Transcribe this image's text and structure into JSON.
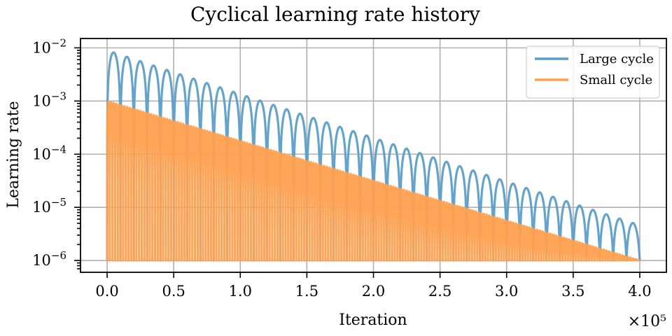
{
  "chart_data": {
    "type": "line",
    "title": "Cyclical learning rate history",
    "xlabel": "Iteration",
    "ylabel": "Learning rate",
    "x_multiplier_label": "×10⁵",
    "xlim": [
      -0.2,
      4.2
    ],
    "ylim": [
      6e-07,
      0.015
    ],
    "yscale": "log",
    "x_ticks": [
      {
        "value": 0.0,
        "label": "0.0"
      },
      {
        "value": 0.5,
        "label": "0.5"
      },
      {
        "value": 1.0,
        "label": "1.0"
      },
      {
        "value": 1.5,
        "label": "1.5"
      },
      {
        "value": 2.0,
        "label": "2.0"
      },
      {
        "value": 2.5,
        "label": "2.5"
      },
      {
        "value": 3.0,
        "label": "3.0"
      },
      {
        "value": 3.5,
        "label": "3.5"
      },
      {
        "value": 4.0,
        "label": "4.0"
      }
    ],
    "y_ticks": [
      {
        "value": 1e-06,
        "base": "10",
        "exp": "−6"
      },
      {
        "value": 1e-05,
        "base": "10",
        "exp": "−5"
      },
      {
        "value": 0.0001,
        "base": "10",
        "exp": "−4"
      },
      {
        "value": 0.001,
        "base": "10",
        "exp": "−3"
      },
      {
        "value": 0.01,
        "base": "10",
        "exp": "−2"
      }
    ],
    "grid": true,
    "legend_position": "top-right",
    "series": [
      {
        "name": "Large cycle",
        "color": "#5b9ec9",
        "base_lr": 1e-06,
        "max_lr_start": 0.009,
        "max_lr_end": 4.6e-06,
        "cycle_length": 0.1,
        "x_range": [
          0,
          4.0
        ]
      },
      {
        "name": "Small cycle",
        "color": "#ffa04f",
        "base_lr": 1e-06,
        "max_lr_start": 0.001,
        "max_lr_end": 1e-06,
        "cycle_length": 0.02,
        "x_range": [
          0,
          4.0
        ]
      }
    ]
  }
}
